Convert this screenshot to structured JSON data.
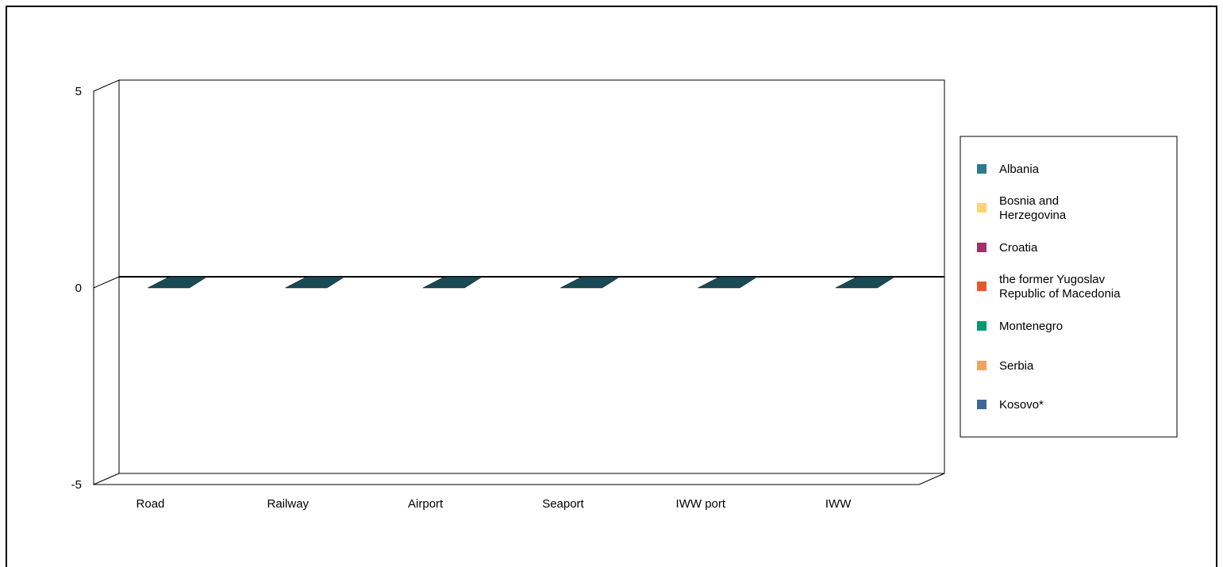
{
  "chart_data": {
    "type": "bar",
    "categories": [
      "Road",
      "Railway",
      "Airport",
      "Seaport",
      "IWW port",
      "IWW"
    ],
    "series": [
      {
        "name": "Albania",
        "color": "#2E7A8C",
        "values": [
          0,
          0,
          0,
          0,
          0,
          0
        ]
      },
      {
        "name": "Bosnia and Herzegovina",
        "color": "#FFD36E",
        "values": [
          0,
          0,
          0,
          0,
          0,
          0
        ]
      },
      {
        "name": "Croatia",
        "color": "#A3306A",
        "values": [
          0,
          0,
          0,
          0,
          0,
          0
        ]
      },
      {
        "name": "the former Yugoslav Republic of Macedonia",
        "color": "#E2592A",
        "values": [
          0,
          0,
          0,
          0,
          0,
          0
        ]
      },
      {
        "name": "Montenegro",
        "color": "#009973",
        "values": [
          0,
          0,
          0,
          0,
          0,
          0
        ]
      },
      {
        "name": "Serbia",
        "color": "#F0A35E",
        "values": [
          0,
          0,
          0,
          0,
          0,
          0
        ]
      },
      {
        "name": "Kosovo*",
        "color": "#3D6699",
        "values": [
          0,
          0,
          0,
          0,
          0,
          0
        ]
      }
    ],
    "bar_top_color": "#1A4A55",
    "ylim": [
      -5,
      5
    ],
    "yticks": [
      {
        "value": 5,
        "label": "5"
      },
      {
        "value": 0,
        "label": "0"
      },
      {
        "value": -5,
        "label": "-5"
      }
    ],
    "grid": false,
    "legend_position": "right",
    "three_d": true,
    "title": "",
    "xlabel": "",
    "ylabel": ""
  }
}
